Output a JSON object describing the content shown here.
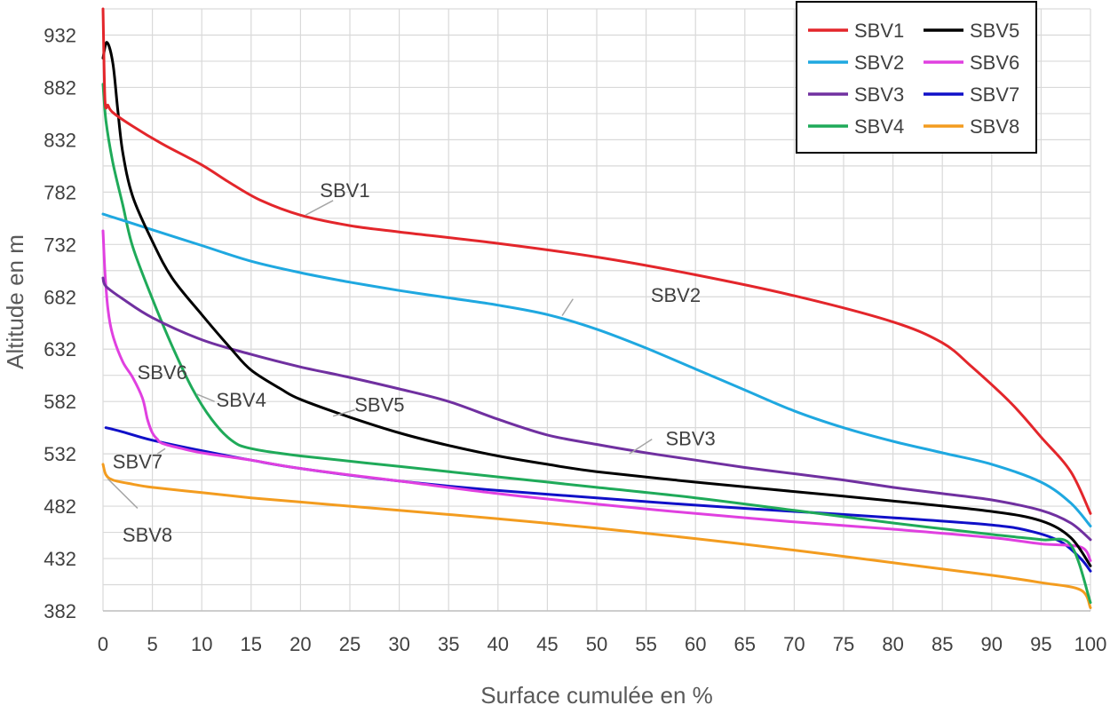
{
  "chart_data": {
    "type": "line",
    "title": "",
    "xlabel": "Surface cumulée en %",
    "ylabel": "Altitude en m",
    "xlim": [
      0,
      100
    ],
    "ylim": [
      382,
      957
    ],
    "grid": true,
    "legend_position": "top-right",
    "x_ticks": [
      "0",
      "5",
      "10",
      "15",
      "20",
      "25",
      "30",
      "35",
      "40",
      "45",
      "50",
      "55",
      "60",
      "65",
      "70",
      "75",
      "80",
      "85",
      "90",
      "95",
      "100"
    ],
    "y_ticks": [
      "382",
      "432",
      "482",
      "532",
      "582",
      "632",
      "682",
      "732",
      "782",
      "832",
      "882",
      "932"
    ],
    "series": [
      {
        "name": "SBV1",
        "color": "#e3262b",
        "x": [
          0,
          0.2,
          0.5,
          1,
          3,
          6,
          10,
          13,
          16,
          20,
          25,
          30,
          40,
          50,
          60,
          70,
          80,
          85,
          88,
          92,
          95,
          98,
          100
        ],
        "y": [
          957,
          870,
          865,
          858,
          845,
          828,
          808,
          790,
          774,
          760,
          750,
          744,
          733,
          720,
          703,
          683,
          658,
          638,
          615,
          580,
          548,
          515,
          475
        ]
      },
      {
        "name": "SBV2",
        "color": "#1fa8e0",
        "x": [
          0,
          5,
          10,
          15,
          20,
          25,
          30,
          35,
          40,
          45,
          50,
          55,
          60,
          65,
          70,
          75,
          80,
          85,
          90,
          95,
          98,
          100
        ],
        "y": [
          761,
          746,
          731,
          716,
          705,
          696,
          688,
          681,
          674,
          665,
          651,
          633,
          613,
          593,
          573,
          557,
          544,
          533,
          522,
          505,
          485,
          463
        ]
      },
      {
        "name": "SBV3",
        "color": "#7030a0",
        "x": [
          0,
          0.3,
          2,
          5,
          10,
          15,
          20,
          25,
          30,
          35,
          40,
          45,
          50,
          55,
          60,
          65,
          70,
          75,
          80,
          85,
          90,
          95,
          98,
          100
        ],
        "y": [
          700,
          692,
          680,
          662,
          641,
          627,
          615,
          605,
          594,
          582,
          565,
          550,
          541,
          533,
          526,
          519,
          513,
          507,
          500,
          494,
          488,
          478,
          466,
          450
        ]
      },
      {
        "name": "SBV4",
        "color": "#1faa59",
        "x": [
          0,
          0.3,
          1,
          2,
          3,
          5,
          7,
          9,
          11,
          13,
          15,
          20,
          30,
          40,
          50,
          60,
          70,
          80,
          90,
          95,
          98,
          100
        ],
        "y": [
          885,
          850,
          810,
          770,
          730,
          680,
          635,
          595,
          565,
          545,
          537,
          530,
          520,
          510,
          500,
          490,
          478,
          466,
          455,
          450,
          445,
          390
        ]
      },
      {
        "name": "SBV5",
        "color": "#000000",
        "x": [
          0,
          0.4,
          1,
          1.5,
          2,
          3,
          5,
          7,
          10,
          13,
          15,
          18,
          20,
          25,
          30,
          35,
          40,
          45,
          50,
          60,
          70,
          80,
          90,
          95,
          98,
          100
        ],
        "y": [
          910,
          925,
          905,
          860,
          820,
          778,
          735,
          700,
          665,
          632,
          612,
          594,
          584,
          567,
          552,
          540,
          530,
          522,
          515,
          505,
          496,
          487,
          477,
          468,
          452,
          425
        ]
      },
      {
        "name": "SBV6",
        "color": "#e040e0",
        "x": [
          0,
          0.2,
          0.5,
          1,
          2,
          3,
          4,
          4.5,
          5,
          5.5,
          6,
          8,
          10,
          15,
          20,
          30,
          40,
          50,
          60,
          70,
          80,
          90,
          95,
          99,
          100
        ],
        "y": [
          745,
          705,
          670,
          645,
          620,
          605,
          585,
          565,
          552,
          546,
          542,
          537,
          533,
          526,
          518,
          506,
          494,
          484,
          475,
          467,
          460,
          452,
          446,
          443,
          430
        ]
      },
      {
        "name": "SBV7",
        "color": "#1010c8",
        "x": [
          0.3,
          2,
          5,
          10,
          15,
          20,
          30,
          40,
          50,
          60,
          70,
          80,
          90,
          94,
          97,
          99,
          100
        ],
        "y": [
          557,
          553,
          545,
          535,
          526,
          518,
          506,
          497,
          490,
          483,
          477,
          471,
          464,
          458,
          448,
          432,
          420
        ]
      },
      {
        "name": "SBV8",
        "color": "#f39c1f",
        "x": [
          0,
          0.3,
          1,
          3,
          5,
          10,
          15,
          20,
          30,
          40,
          50,
          60,
          70,
          80,
          90,
          95,
          99,
          100
        ],
        "y": [
          522,
          512,
          507,
          503,
          500,
          495,
          490,
          486,
          478,
          470,
          461,
          451,
          440,
          428,
          416,
          409,
          402,
          385
        ]
      }
    ],
    "annotations": [
      {
        "text": "SBV1",
        "x": 24.5,
        "y": 784,
        "leader": [
          [
            20.5,
            760
          ],
          [
            23.3,
            774
          ]
        ]
      },
      {
        "text": "SBV2",
        "x": 58,
        "y": 684,
        "leader": [
          [
            46.5,
            664
          ],
          [
            47.6,
            680
          ]
        ]
      },
      {
        "text": "SBV3",
        "x": 59.5,
        "y": 547,
        "leader": [
          [
            53.3,
            532
          ],
          [
            55.6,
            546
          ]
        ]
      },
      {
        "text": "SBV4",
        "x": 14,
        "y": 584,
        "leader": [
          [
            9.5,
            589
          ],
          [
            11.3,
            582
          ]
        ]
      },
      {
        "text": "SBV5",
        "x": 28,
        "y": 579,
        "leader": [
          [
            23.3,
            568
          ],
          [
            25.5,
            574
          ]
        ]
      },
      {
        "text": "SBV6",
        "x": 6,
        "y": 610,
        "leader": []
      },
      {
        "text": "SBV7",
        "x": 3.5,
        "y": 525,
        "leader": [
          [
            6.3,
            537
          ],
          [
            5.5,
            532
          ]
        ]
      },
      {
        "text": "SBV8",
        "x": 4.5,
        "y": 455,
        "leader": [
          [
            0.5,
            508
          ],
          [
            3.5,
            480
          ]
        ]
      }
    ]
  }
}
